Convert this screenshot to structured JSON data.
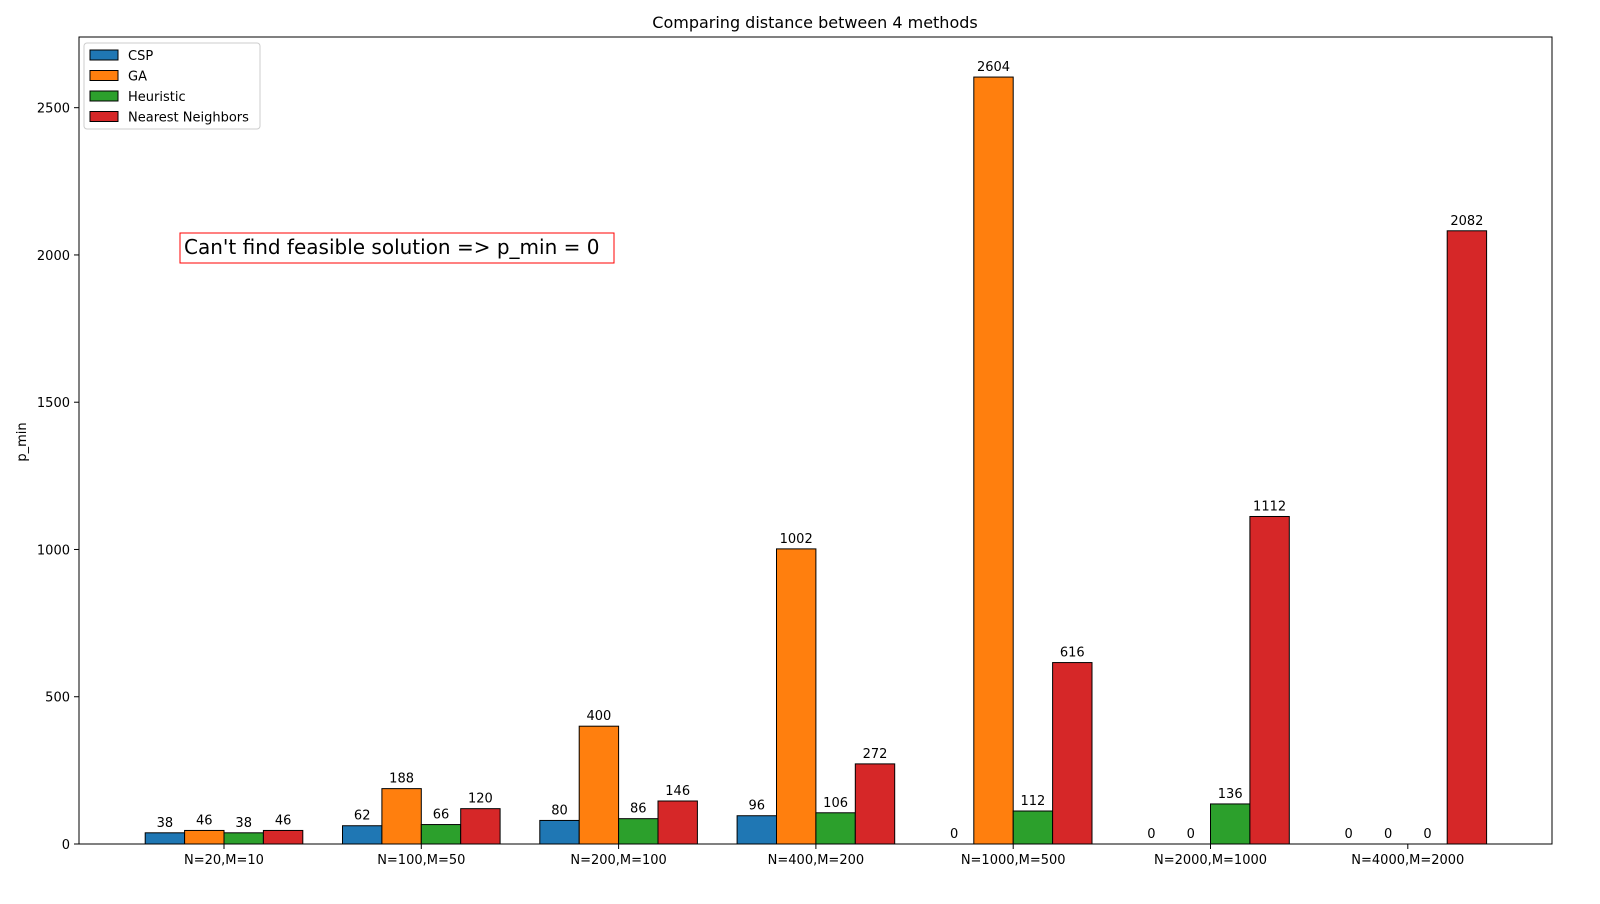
{
  "chart_data": {
    "type": "bar",
    "title": "Comparing distance between 4 methods",
    "xlabel": "",
    "ylabel": "p_min",
    "ylim": [
      0,
      2740
    ],
    "yticks": [
      0,
      500,
      1000,
      1500,
      2000,
      2500
    ],
    "categories": [
      "N=20,M=10",
      "N=100,M=50",
      "N=200,M=100",
      "N=400,M=200",
      "N=1000,M=500",
      "N=2000,M=1000",
      "N=4000,M=2000"
    ],
    "series": [
      {
        "name": "CSP",
        "color": "#1f77b4",
        "values": [
          38,
          62,
          80,
          96,
          0,
          0,
          0
        ]
      },
      {
        "name": "GA",
        "color": "#ff7f0e",
        "values": [
          46,
          188,
          400,
          1002,
          2604,
          0,
          0
        ]
      },
      {
        "name": "Heuristic",
        "color": "#2ca02c",
        "values": [
          38,
          66,
          86,
          106,
          112,
          136,
          0
        ]
      },
      {
        "name": "Nearest Neighbors",
        "color": "#d62728",
        "values": [
          46,
          120,
          146,
          272,
          616,
          1112,
          2082
        ]
      }
    ],
    "legend_position": "top-left",
    "grid": false,
    "annotation": {
      "text": "Can't find feasible solution => p_min = 0",
      "border_color": "#ff0000"
    }
  }
}
